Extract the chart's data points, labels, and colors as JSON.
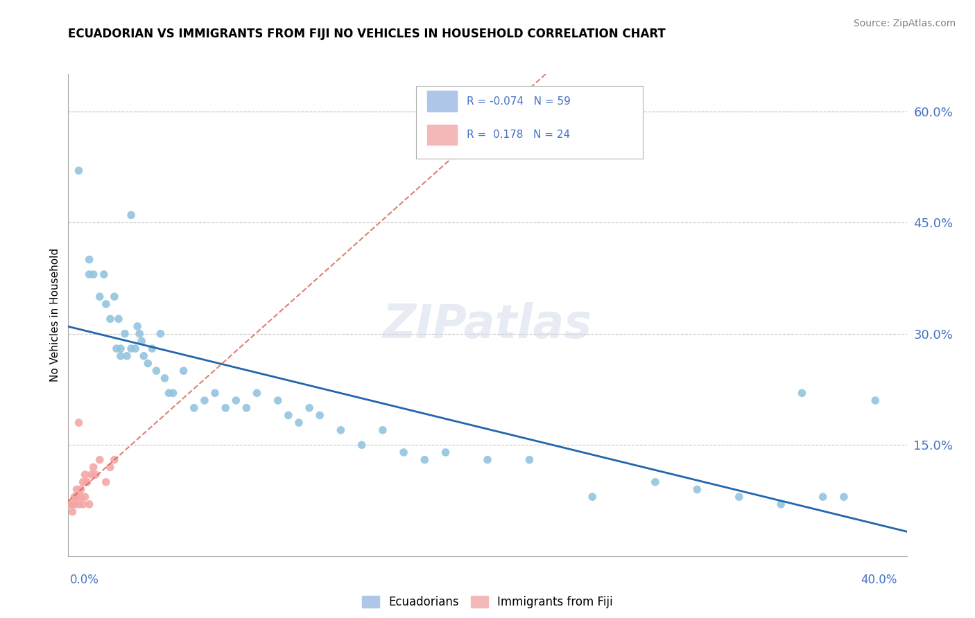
{
  "title": "ECUADORIAN VS IMMIGRANTS FROM FIJI NO VEHICLES IN HOUSEHOLD CORRELATION CHART",
  "source": "Source: ZipAtlas.com",
  "ylabel": "No Vehicles in Household",
  "ytick_labels": [
    "15.0%",
    "30.0%",
    "45.0%",
    "60.0%"
  ],
  "ytick_values": [
    0.15,
    0.3,
    0.45,
    0.6
  ],
  "xlim": [
    0.0,
    0.4
  ],
  "ylim": [
    0.0,
    0.65
  ],
  "watermark": "ZIPatlas",
  "ecuadorians_color": "#92c5de",
  "fiji_color": "#f4a6a6",
  "trend_ecuador_color": "#2166ac",
  "trend_fiji_color": "#d6604d",
  "background_color": "#ffffff",
  "ecuadorians_x": [
    0.005,
    0.03,
    0.01,
    0.01,
    0.012,
    0.015,
    0.017,
    0.018,
    0.02,
    0.022,
    0.023,
    0.024,
    0.025,
    0.025,
    0.027,
    0.028,
    0.03,
    0.032,
    0.033,
    0.034,
    0.035,
    0.036,
    0.038,
    0.04,
    0.042,
    0.044,
    0.046,
    0.048,
    0.05,
    0.055,
    0.06,
    0.065,
    0.07,
    0.075,
    0.08,
    0.085,
    0.09,
    0.1,
    0.105,
    0.11,
    0.115,
    0.12,
    0.13,
    0.14,
    0.15,
    0.16,
    0.17,
    0.18,
    0.2,
    0.22,
    0.25,
    0.28,
    0.3,
    0.32,
    0.34,
    0.35,
    0.36,
    0.37,
    0.385
  ],
  "ecuadorians_y": [
    0.52,
    0.46,
    0.4,
    0.38,
    0.38,
    0.35,
    0.38,
    0.34,
    0.32,
    0.35,
    0.28,
    0.32,
    0.27,
    0.28,
    0.3,
    0.27,
    0.28,
    0.28,
    0.31,
    0.3,
    0.29,
    0.27,
    0.26,
    0.28,
    0.25,
    0.3,
    0.24,
    0.22,
    0.22,
    0.25,
    0.2,
    0.21,
    0.22,
    0.2,
    0.21,
    0.2,
    0.22,
    0.21,
    0.19,
    0.18,
    0.2,
    0.19,
    0.17,
    0.15,
    0.17,
    0.14,
    0.13,
    0.14,
    0.13,
    0.13,
    0.08,
    0.1,
    0.09,
    0.08,
    0.07,
    0.22,
    0.08,
    0.08,
    0.21
  ],
  "fiji_x": [
    0.001,
    0.002,
    0.002,
    0.003,
    0.003,
    0.004,
    0.004,
    0.005,
    0.005,
    0.006,
    0.006,
    0.007,
    0.007,
    0.008,
    0.008,
    0.009,
    0.01,
    0.011,
    0.012,
    0.013,
    0.015,
    0.018,
    0.02,
    0.022
  ],
  "fiji_y": [
    0.07,
    0.07,
    0.06,
    0.08,
    0.07,
    0.09,
    0.08,
    0.18,
    0.07,
    0.09,
    0.08,
    0.1,
    0.07,
    0.11,
    0.08,
    0.1,
    0.07,
    0.11,
    0.12,
    0.11,
    0.13,
    0.1,
    0.12,
    0.13
  ]
}
